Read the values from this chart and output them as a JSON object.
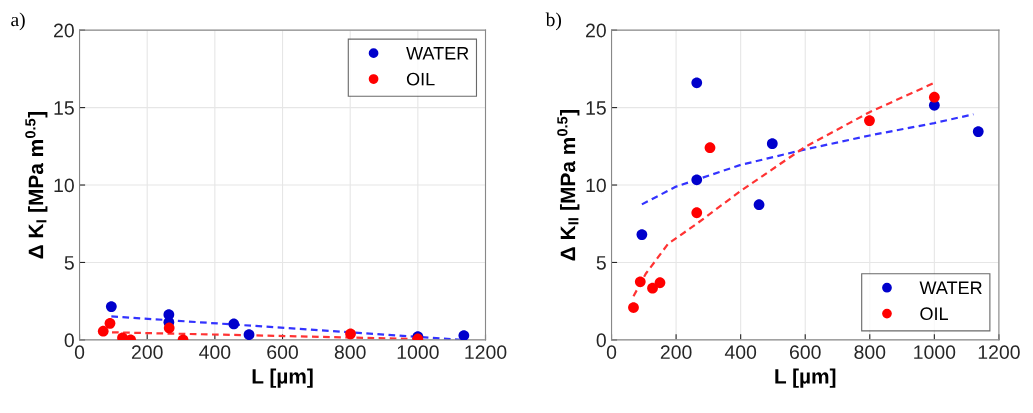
{
  "chart_data": [
    {
      "type": "scatter",
      "title": "a)",
      "xlabel": "L [µm]",
      "ylabel": "Δ K$_{I}$ [MPa m$^{0.5}$]",
      "xlim": [
        0,
        1200
      ],
      "xticks": [
        0,
        200,
        400,
        600,
        800,
        1000,
        1200
      ],
      "ylim": [
        0,
        20
      ],
      "yticks": [
        0,
        5,
        10,
        15,
        20
      ],
      "grid": true,
      "legend": "top right",
      "series": [
        {
          "name": "WATER",
          "marker": "circle",
          "color": "#0000cc",
          "x": [
            94,
            264,
            264,
            456,
            501,
            1000,
            1136
          ],
          "values": [
            2.15,
            1.63,
            1.14,
            1.03,
            0.34,
            0.21,
            0.28
          ]
        },
        {
          "name": "OIL",
          "marker": "circle",
          "color": "#ff0000",
          "x": [
            70,
            90,
            127,
            151,
            265,
            306,
            801,
            1000
          ],
          "values": [
            0.56,
            1.07,
            0.13,
            0.0,
            0.77,
            0.0,
            0.39,
            0.06
          ]
        },
        {
          "type": "line",
          "line_style": "dashed",
          "color": "#3333ff",
          "x": [
            94,
            1136
          ],
          "values": [
            1.52,
            0.0
          ]
        },
        {
          "type": "line",
          "line_style": "dashed",
          "color": "#ff3333",
          "x": [
            96,
            1000
          ],
          "values": [
            0.49,
            0.06
          ]
        }
      ]
    },
    {
      "type": "scatter",
      "title": "b)",
      "xlabel": "L [µm]",
      "ylabel": "Δ K$_{II}$ [MPa m$^{0.5}$]",
      "xlim": [
        0,
        1200
      ],
      "xticks": [
        0,
        200,
        400,
        600,
        800,
        1000,
        1200
      ],
      "ylim": [
        0,
        20
      ],
      "yticks": [
        0,
        5,
        10,
        15,
        20
      ],
      "grid": true,
      "legend": "bottom right",
      "series": [
        {
          "name": "WATER",
          "marker": "circle",
          "color": "#0000cc",
          "x": [
            94,
            264,
            264,
            457,
            498,
            1000,
            1136
          ],
          "values": [
            6.8,
            16.6,
            10.34,
            8.73,
            12.67,
            15.15,
            13.45
          ]
        },
        {
          "name": "OIL",
          "marker": "circle",
          "color": "#ff0000",
          "x": [
            68,
            89,
            127,
            150,
            264,
            305,
            799,
            1000
          ],
          "values": [
            2.09,
            3.75,
            3.34,
            3.69,
            8.21,
            12.41,
            14.16,
            15.67
          ]
        },
        {
          "type": "line",
          "line_style": "dashed",
          "color": "#3333ff",
          "x": [
            94,
            200,
            400,
            600,
            800,
            1000,
            1121
          ],
          "values": [
            8.75,
            9.9,
            11.3,
            12.3,
            13.2,
            14.0,
            14.57
          ]
        },
        {
          "type": "line",
          "line_style": "dashed",
          "color": "#ff3333",
          "x": [
            68,
            106,
            175,
            264,
            402,
            599,
            799,
            1000
          ],
          "values": [
            2.82,
            4.27,
            6.2,
            7.5,
            9.65,
            12.45,
            14.7,
            16.6
          ]
        }
      ]
    }
  ]
}
